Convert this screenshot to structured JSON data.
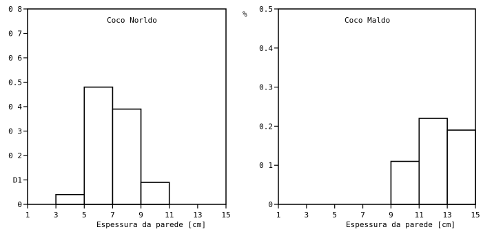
{
  "chart_data": [
    {
      "type": "bar",
      "title": "Coco Norldo",
      "xlabel": "Espessura da parede [cm]",
      "ylabel": "",
      "x_ticks": [
        "1",
        "3",
        "5",
        "7",
        "9",
        "11",
        "13",
        "15"
      ],
      "x_tick_values": [
        1,
        3,
        5,
        7,
        9,
        11,
        13,
        15
      ],
      "xlim": [
        1,
        15
      ],
      "y_ticks": [
        "0",
        "0.1",
        "0.2",
        "0.3",
        "0.4",
        "0.5",
        "0.6",
        "0.7",
        "0.8"
      ],
      "y_tick_labels": [
        "θ",
        "D1",
        "0 2",
        "0 3",
        "0 4",
        "0.5",
        "0 6",
        "0 7",
        "0 8"
      ],
      "ylim": [
        0,
        0.8
      ],
      "bins": [
        {
          "x0": 3,
          "x1": 5,
          "value": 0.04
        },
        {
          "x0": 5,
          "x1": 7,
          "value": 0.48
        },
        {
          "x0": 7,
          "x1": 9,
          "value": 0.39
        },
        {
          "x0": 9,
          "x1": 11,
          "value": 0.09
        }
      ]
    },
    {
      "type": "bar",
      "title": "Coco Maldo",
      "xlabel": "Espessura da parede [cm]",
      "ylabel": "",
      "x_ticks": [
        "1",
        "3",
        "5",
        "7",
        "9",
        "11",
        "13",
        "15"
      ],
      "x_tick_values": [
        1,
        3,
        5,
        7,
        9,
        11,
        13,
        15
      ],
      "xlim": [
        1,
        15
      ],
      "y_ticks": [
        "0",
        "0.1",
        "0.2",
        "0.3",
        "0.4",
        "0.5"
      ],
      "y_tick_labels": [
        "0",
        "0 1",
        "0.2",
        "0.3",
        "0.4",
        "0.5"
      ],
      "y_axis_marker": "%",
      "ylim": [
        0,
        0.5
      ],
      "bins": [
        {
          "x0": 9,
          "x1": 11,
          "value": 0.11
        },
        {
          "x0": 11,
          "x1": 13,
          "value": 0.22
        },
        {
          "x0": 13,
          "x1": 15,
          "value": 0.19
        }
      ]
    }
  ]
}
